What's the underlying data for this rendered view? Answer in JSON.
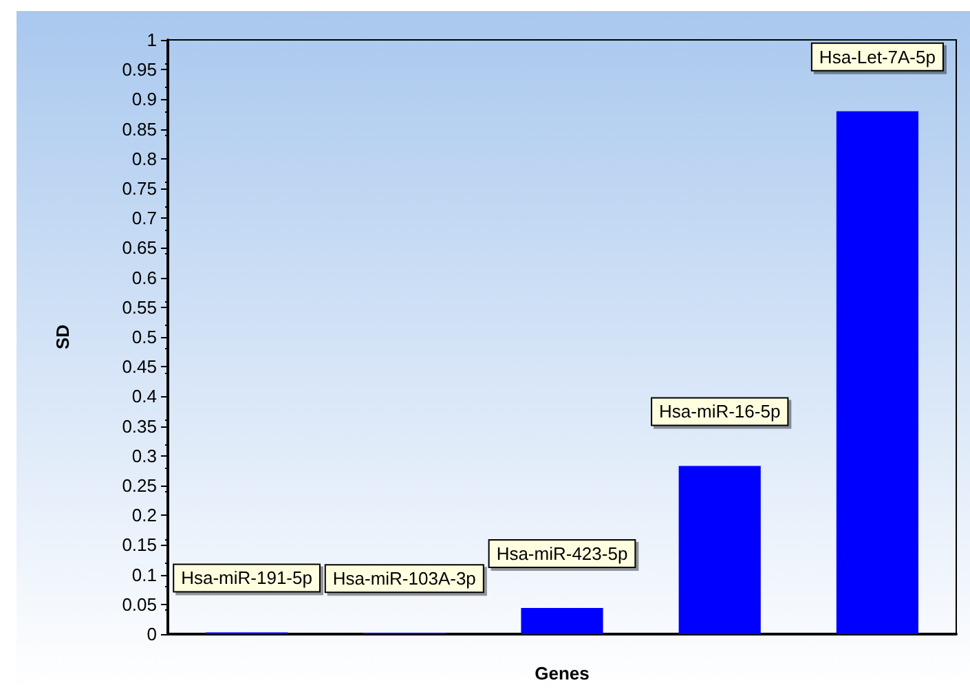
{
  "chart_data": {
    "type": "bar",
    "xlabel": "Genes",
    "ylabel": "SD",
    "categories": [
      "Hsa-miR-191-5p",
      "Hsa-miR-103A-3p",
      "Hsa-miR-423-5p",
      "Hsa-miR-16-5p",
      "Hsa-Let-7A-5p"
    ],
    "values": [
      0.003,
      0.002,
      0.044,
      0.283,
      0.88
    ],
    "color": "#0000ff",
    "ylim": [
      0,
      1
    ],
    "yticks": [
      0,
      0.05,
      0.1,
      0.15,
      0.2,
      0.25,
      0.3,
      0.35,
      0.4,
      0.45,
      0.5,
      0.55,
      0.6,
      0.65,
      0.7,
      0.75,
      0.8,
      0.85,
      0.9,
      0.95,
      1
    ],
    "grid": false
  }
}
